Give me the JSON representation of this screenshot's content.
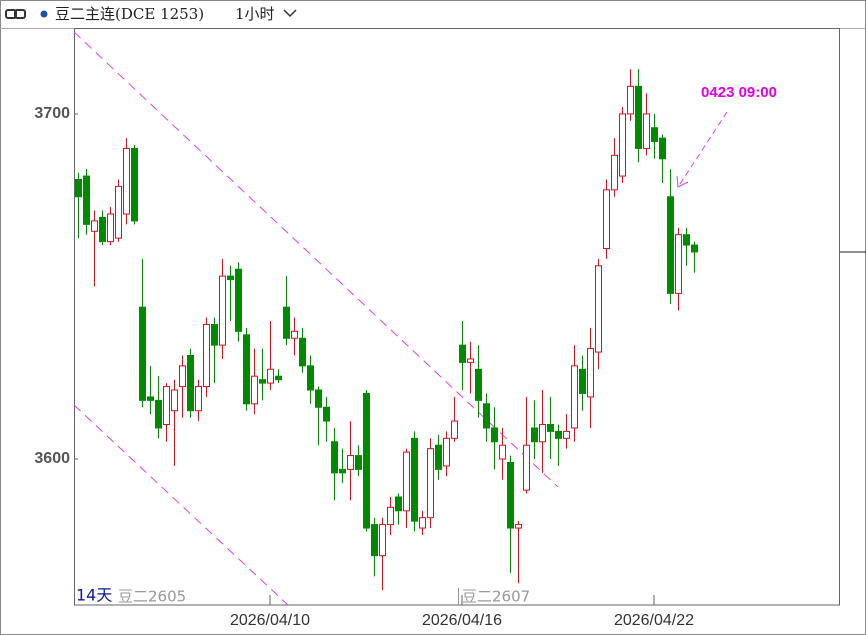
{
  "chart_data": {
    "type": "candlestick",
    "title": "豆二主连(DCE 1253)",
    "period": "1小时",
    "annotation": "0423 09:00",
    "range_label": "14天",
    "contract_labels": [
      "豆二2605",
      "豆二2607"
    ],
    "up_color": "#e0101a",
    "down_color": "#008a00",
    "ylim": [
      3557.7,
      3724.9
    ],
    "yticks": [
      3600,
      3700
    ],
    "categories": [
      null,
      null,
      null,
      null,
      null,
      null,
      null,
      null,
      null,
      null,
      null,
      null,
      null,
      null,
      null,
      null,
      null,
      null,
      null,
      null,
      null,
      null,
      null,
      null,
      "2026/04/10",
      null,
      null,
      null,
      null,
      null,
      null,
      null,
      null,
      null,
      null,
      null,
      null,
      null,
      null,
      null,
      null,
      null,
      null,
      null,
      null,
      null,
      null,
      null,
      "2026/04/16",
      null,
      null,
      null,
      null,
      null,
      null,
      null,
      null,
      null,
      null,
      null,
      null,
      null,
      null,
      null,
      null,
      null,
      null,
      null,
      null,
      null,
      null,
      null,
      "2026/04/22",
      null,
      null,
      null,
      null,
      null
    ],
    "open": [
      3681,
      3682,
      3666,
      3670,
      3663,
      3664,
      3671,
      3690,
      3644,
      3618,
      3617,
      3610,
      3614,
      3621,
      3630,
      3614,
      3621,
      3639,
      3633,
      3653,
      3655,
      3636,
      3616,
      3623,
      3622,
      3624,
      3644,
      3635,
      3635,
      3627,
      3620,
      3615,
      3605,
      3597,
      3597,
      3601,
      3619,
      3581,
      3572,
      3581,
      3589,
      3585,
      3606,
      3580,
      3583,
      3604,
      3598,
      3606,
      3633,
      3628,
      3626,
      3616,
      3609,
      3600,
      3599,
      3580,
      3591,
      3609,
      3605,
      3610,
      3608,
      3606,
      3609,
      3626,
      3618,
      3631,
      3661,
      3678,
      3682,
      3700,
      3708,
      3690,
      3696,
      3693,
      3676,
      3648,
      3665,
      3662
    ],
    "high": [
      3683,
      3684,
      3672,
      3672,
      3673,
      3681,
      3693,
      3691,
      3658,
      3627,
      3624,
      3622,
      3623,
      3630,
      3632,
      3623,
      3641,
      3641,
      3658,
      3656,
      3657,
      3638,
      3632,
      3632,
      3640,
      3626,
      3653,
      3641,
      3638,
      3630,
      3621,
      3618,
      3609,
      3603,
      3611,
      3604,
      3620,
      3583,
      3583,
      3589,
      3590,
      3603,
      3608,
      3585,
      3606,
      3607,
      3608,
      3618,
      3640,
      3634,
      3633,
      3619,
      3615,
      3609,
      3601,
      3582,
      3618,
      3617,
      3620,
      3618,
      3610,
      3613,
      3633,
      3630,
      3638,
      3658,
      3681,
      3693,
      3702,
      3713,
      3713,
      3706,
      3700,
      3694,
      3684,
      3667,
      3667,
      3663
    ],
    "low": [
      3664,
      3665,
      3650,
      3662,
      3662,
      3663,
      3668,
      3668,
      3615,
      3613,
      3606,
      3605,
      3598,
      3612,
      3612,
      3611,
      3618,
      3622,
      3629,
      3640,
      3634,
      3614,
      3613,
      3617,
      3620,
      3622,
      3633,
      3630,
      3625,
      3616,
      3604,
      3605,
      3588,
      3593,
      3588,
      3595,
      3579,
      3566,
      3562,
      3578,
      3581,
      3580,
      3579,
      3578,
      3580,
      3594,
      3595,
      3605,
      3620,
      3619,
      3612,
      3605,
      3597,
      3594,
      3567,
      3564,
      3590,
      3600,
      3596,
      3600,
      3598,
      3603,
      3605,
      3614,
      3609,
      3626,
      3658,
      3676,
      3680,
      3698,
      3686,
      3688,
      3687,
      3680,
      3645,
      3643,
      3656,
      3654
    ],
    "close": [
      3676,
      3668,
      3669,
      3663,
      3671,
      3679,
      3690,
      3669,
      3617,
      3617,
      3609,
      3621,
      3620,
      3627,
      3614,
      3621,
      3639,
      3633,
      3653,
      3652,
      3637,
      3616,
      3624,
      3622,
      3626,
      3623,
      3635,
      3637,
      3627,
      3620,
      3615,
      3611,
      3596,
      3596,
      3601,
      3597,
      3580,
      3572,
      3581,
      3586,
      3585,
      3602,
      3582,
      3583,
      3603,
      3597,
      3606,
      3611,
      3628,
      3629,
      3617,
      3609,
      3605,
      3604,
      3580,
      3581,
      3604,
      3605,
      3610,
      3608,
      3606,
      3608,
      3627,
      3619,
      3632,
      3656,
      3678,
      3688,
      3700,
      3708,
      3690,
      3700,
      3692,
      3687,
      3648,
      3665,
      3662,
      3660
    ]
  }
}
